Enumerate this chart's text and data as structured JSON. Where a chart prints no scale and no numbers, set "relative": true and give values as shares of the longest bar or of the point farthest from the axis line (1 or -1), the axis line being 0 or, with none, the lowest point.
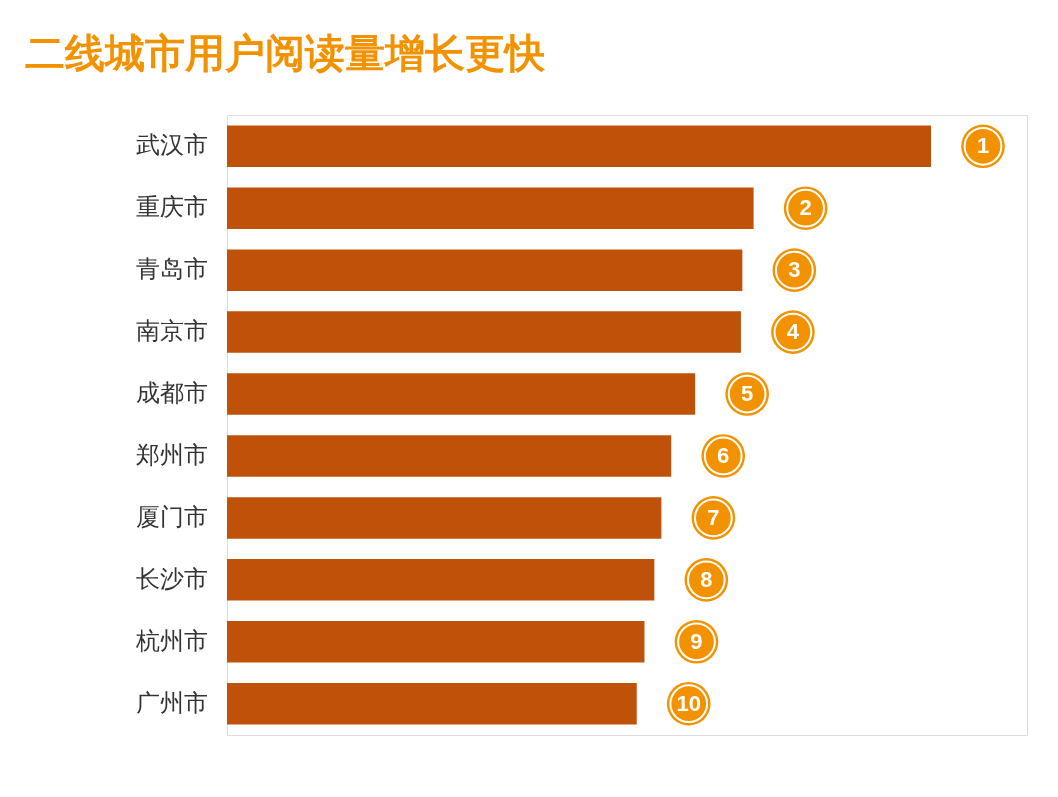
{
  "chart_data": {
    "type": "bar",
    "title": "二线城市用户阅读量增长更快",
    "orientation": "horizontal",
    "relative": true,
    "categories": [
      "武汉市",
      "重庆市",
      "青岛市",
      "南京市",
      "成都市",
      "郑州市",
      "厦门市",
      "长沙市",
      "杭州市",
      "广州市"
    ],
    "values": [
      1,
      0.748,
      0.732,
      0.73,
      0.665,
      0.631,
      0.617,
      0.607,
      0.593,
      0.582
    ],
    "color": "#bf5208",
    "annotations": [
      {
        "text": "1",
        "x": 1,
        "y": "武汉市"
      },
      {
        "text": "2",
        "x": 0.748,
        "y": "重庆市"
      },
      {
        "text": "3",
        "x": 0.732,
        "y": "青岛市"
      },
      {
        "text": "4",
        "x": 0.73,
        "y": "南京市"
      },
      {
        "text": "5",
        "x": 0.665,
        "y": "成都市"
      },
      {
        "text": "6",
        "x": 0.631,
        "y": "郑州市"
      },
      {
        "text": "7",
        "x": 0.617,
        "y": "厦门市"
      },
      {
        "text": "8",
        "x": 0.607,
        "y": "长沙市"
      },
      {
        "text": "9",
        "x": 0.593,
        "y": "杭州市"
      },
      {
        "text": "10",
        "x": 0.582,
        "y": "广州市"
      }
    ]
  }
}
